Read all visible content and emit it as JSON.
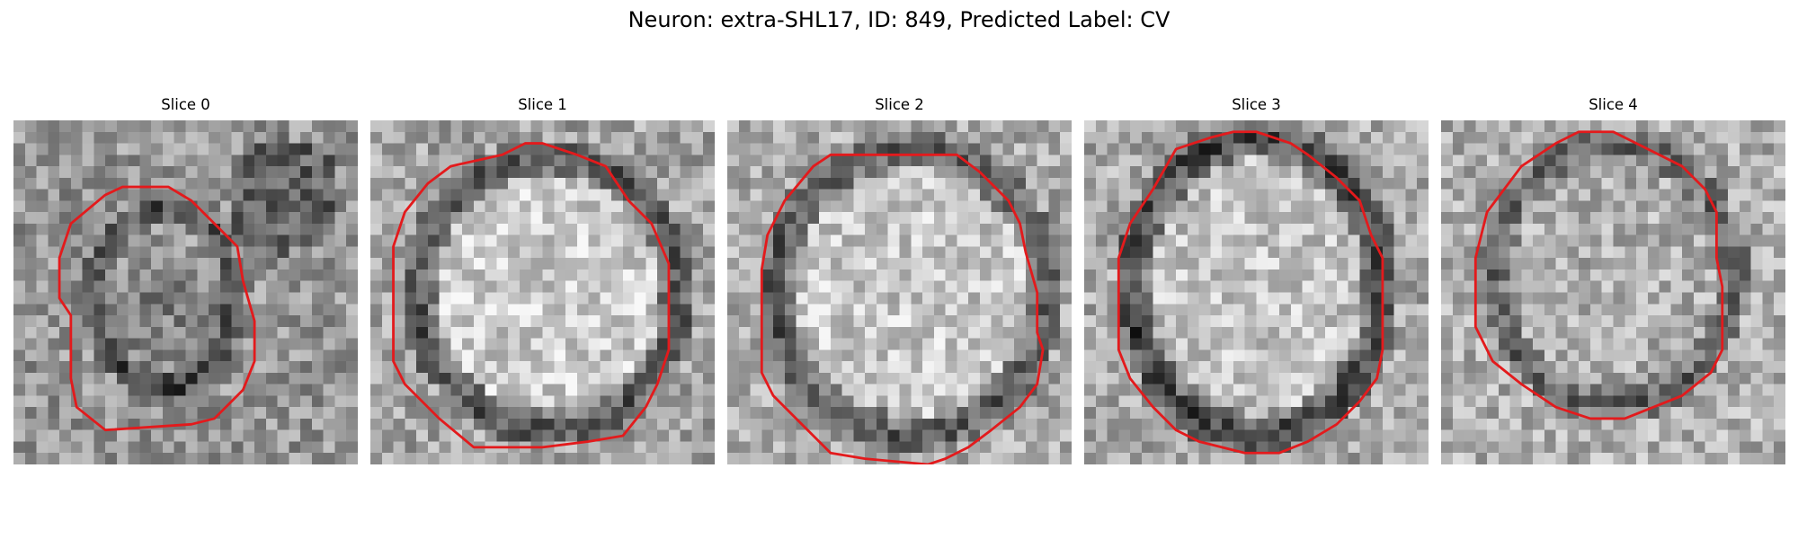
{
  "figure": {
    "title": "Neuron: extra-SHL17, ID: 849, Predicted Label: CV"
  },
  "panels": [
    {
      "title": "Slice 0"
    },
    {
      "title": "Slice 1"
    },
    {
      "title": "Slice 2"
    },
    {
      "title": "Slice 3"
    },
    {
      "title": "Slice 4"
    }
  ],
  "contour_color": "#e31a1c"
}
